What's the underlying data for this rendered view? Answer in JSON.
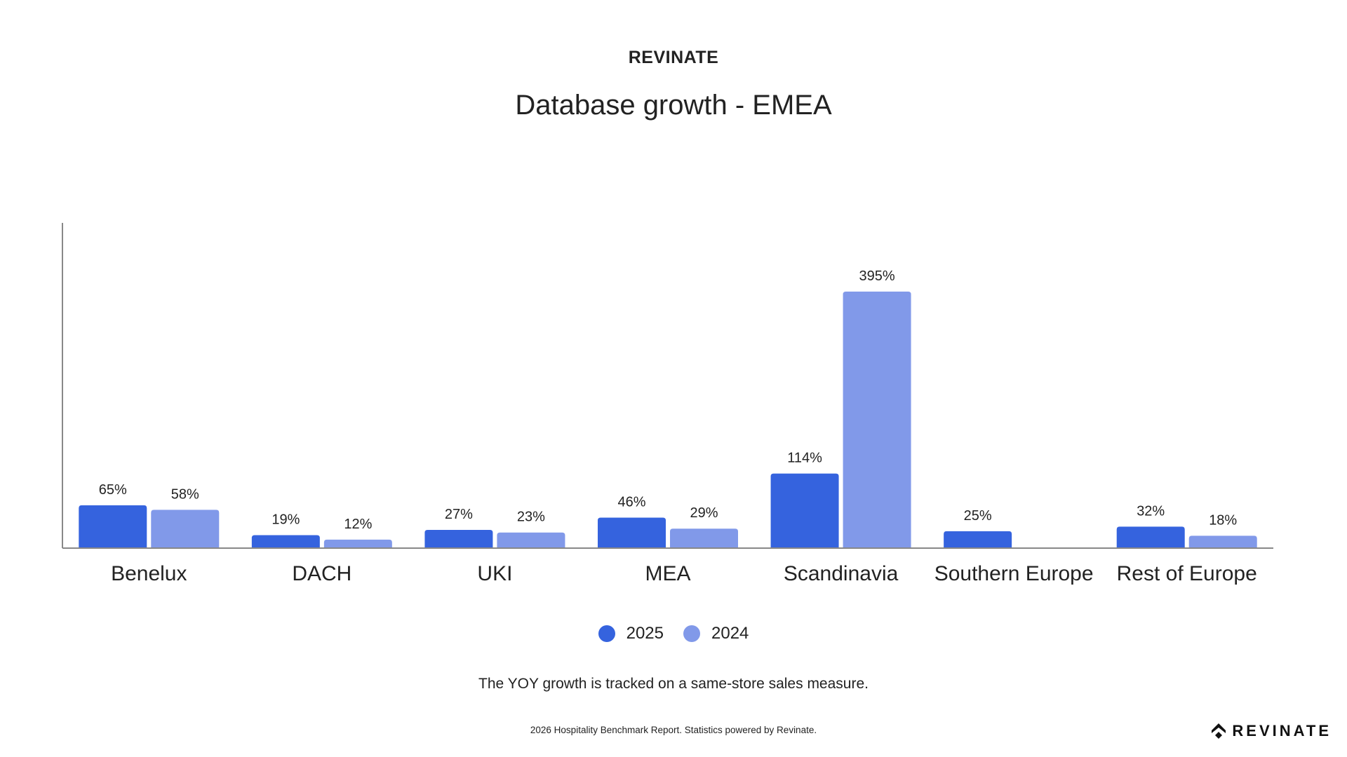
{
  "header": {
    "brand": "REVINATE",
    "title": "Database growth - EMEA"
  },
  "colors": {
    "series_2025": "#3563DE",
    "series_2024": "#8199E9",
    "axis": "#888888",
    "text": "#222222"
  },
  "chart_data": {
    "type": "bar",
    "title": "Database growth - EMEA",
    "xlabel": "",
    "ylabel": "",
    "categories": [
      "Benelux",
      "DACH",
      "UKI",
      "MEA",
      "Scandinavia",
      "Southern Europe",
      "Rest of Europe"
    ],
    "series": [
      {
        "name": "2025",
        "values": [
          65,
          19,
          27,
          46,
          114,
          25,
          32
        ],
        "labels": [
          "65%",
          "19%",
          "27%",
          "46%",
          "114%",
          "25%",
          "32%"
        ]
      },
      {
        "name": "2024",
        "values": [
          58,
          12,
          23,
          29,
          395,
          null,
          18
        ],
        "labels": [
          "58%",
          "12%",
          "23%",
          "29%",
          "395%",
          "",
          "18%"
        ]
      }
    ],
    "ylim": [
      0,
      410
    ],
    "unit": "%",
    "grid": false,
    "legend_position": "bottom-center",
    "show_y_ticks": false
  },
  "legend": {
    "items": [
      {
        "label": "2025"
      },
      {
        "label": "2024"
      }
    ]
  },
  "note": "The YOY growth is tracked on a same-store sales measure.",
  "footer": {
    "text": "2026 Hospitality Benchmark Report. Statistics powered by Revinate.",
    "logo_text": "REVINATE"
  }
}
